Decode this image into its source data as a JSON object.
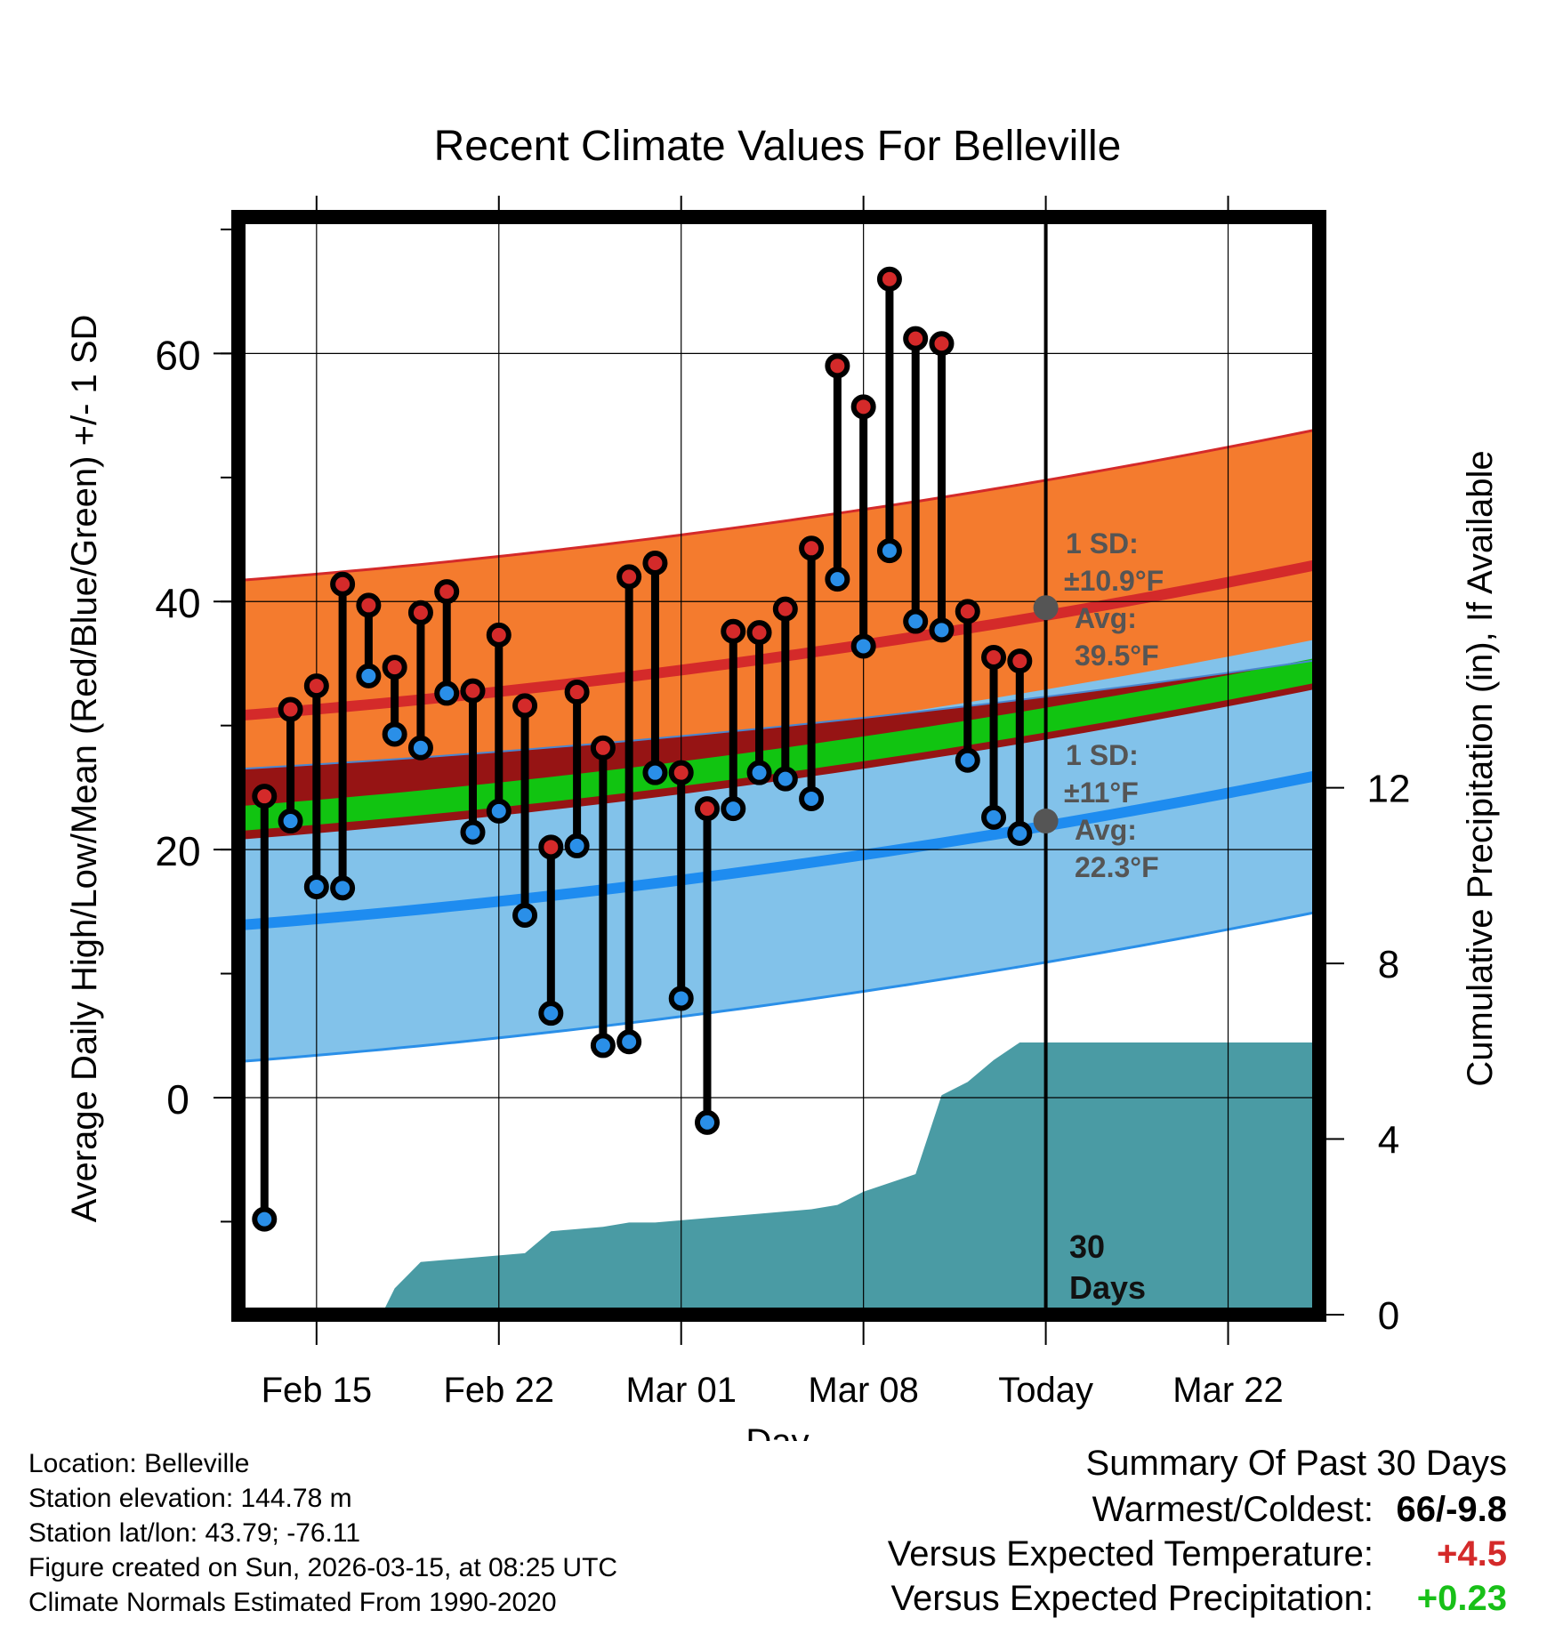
{
  "chart_data": {
    "type": "line",
    "title": "Recent Climate Values For Belleville",
    "xlabel": "Day",
    "ylabel": "Average Daily High/Low/Mean (Red/Blue/Green) +/- 1 SD",
    "y2label": "Cumulative Precipitation (in), If Available",
    "x_range": [
      -3,
      38.5
    ],
    "ylim": [
      -17.5,
      71
    ],
    "y2lim": [
      0,
      25
    ],
    "y_ticks": [
      0,
      20,
      40,
      60
    ],
    "y2_ticks": [
      0,
      4,
      8,
      12
    ],
    "x_ticks": [
      {
        "label": "Feb 15",
        "day": 0
      },
      {
        "label": "Feb 22",
        "day": 7
      },
      {
        "label": "Mar 01",
        "day": 14
      },
      {
        "label": "Mar 08",
        "day": 21
      },
      {
        "label": "Today",
        "day": 28
      },
      {
        "label": "Mar 22",
        "day": 35
      }
    ],
    "today_day": 28,
    "today_label": "30\nDays",
    "normals": {
      "high_mean": {
        "start": 30.8,
        "end": 43.0
      },
      "high_sd": 10.9,
      "low_mean": {
        "start": 13.9,
        "end": 26.0
      },
      "low_sd": 11.0,
      "mean_mean": {
        "start": 22.5,
        "end": 34.5
      },
      "mean_halfwidth": 1.0,
      "mean_sd_band": {
        "start_lower": 20.8,
        "end_lower": 33.0,
        "start_upper": 26.5,
        "end_upper": 35.3
      }
    },
    "today_high": {
      "avg": 39.5,
      "label_sd": "1 SD:",
      "label_sd_value": "±10.9°F",
      "label_avg": "Avg:",
      "label_avg_value": "39.5°F"
    },
    "today_low": {
      "avg": 22.3,
      "label_sd": "1 SD:",
      "label_sd_value": "±11°F",
      "label_avg": "Avg:",
      "label_avg_value": "22.3°F"
    },
    "days": [
      -2,
      -1,
      0,
      1,
      2,
      3,
      4,
      5,
      6,
      7,
      8,
      9,
      10,
      11,
      12,
      13,
      14,
      15,
      16,
      17,
      18,
      19,
      20,
      21,
      22,
      23,
      24,
      25,
      26,
      27
    ],
    "series": [
      {
        "name": "Daily High",
        "color": "#d42a2a",
        "values": [
          24.3,
          31.3,
          33.2,
          41.4,
          39.7,
          34.7,
          39.1,
          40.8,
          32.8,
          37.3,
          31.6,
          20.2,
          32.7,
          28.2,
          42.0,
          43.1,
          26.2,
          23.3,
          37.6,
          37.5,
          39.4,
          44.3,
          59.0,
          55.7,
          66.0,
          61.2,
          60.8,
          39.2,
          35.5,
          35.2
        ]
      },
      {
        "name": "Daily Low",
        "color": "#2a8fe8",
        "values": [
          -9.8,
          22.3,
          17.0,
          16.9,
          34.0,
          29.3,
          28.2,
          32.6,
          21.4,
          23.1,
          14.7,
          6.8,
          20.3,
          4.2,
          4.5,
          26.2,
          8.0,
          -2.0,
          23.3,
          26.2,
          25.7,
          24.1,
          41.8,
          36.4,
          44.1,
          38.4,
          37.7,
          27.2,
          22.6,
          21.3
        ]
      }
    ],
    "precip": {
      "days": [
        -2,
        2.5,
        3,
        3.5,
        4,
        5,
        6,
        7,
        8,
        9,
        10,
        11,
        12,
        13,
        14,
        15,
        16,
        17,
        18,
        19,
        20,
        21,
        22,
        23,
        24,
        25,
        26,
        27,
        28,
        38.5
      ],
      "values": [
        0,
        0,
        0.6,
        0.9,
        1.2,
        1.25,
        1.3,
        1.35,
        1.4,
        1.9,
        1.95,
        2.0,
        2.1,
        2.1,
        2.15,
        2.2,
        2.25,
        2.3,
        2.35,
        2.4,
        2.5,
        2.8,
        3.0,
        3.2,
        5.0,
        5.3,
        5.8,
        6.2,
        6.2,
        6.2
      ]
    }
  },
  "meta": {
    "location": "Location: Belleville",
    "elevation": "Station elevation: 144.78 m",
    "latlon": "Station lat/lon: 43.79; -76.11",
    "created": "Figure created on Sun, 2026-03-15, at 08:25 UTC",
    "normals": "Climate Normals Estimated From 1990-2020"
  },
  "summary": {
    "title": "Summary Of Past 30 Days",
    "warmest_label": "Warmest/Coldest:",
    "warmest_value": "66/-9.8",
    "temp_label": "Versus Expected Temperature:",
    "temp_value": "+4.5",
    "precip_label": "Versus Expected Precipitation:",
    "precip_value": "+0.23",
    "temp_color": "#d42a2a",
    "precip_color": "#18c018"
  }
}
